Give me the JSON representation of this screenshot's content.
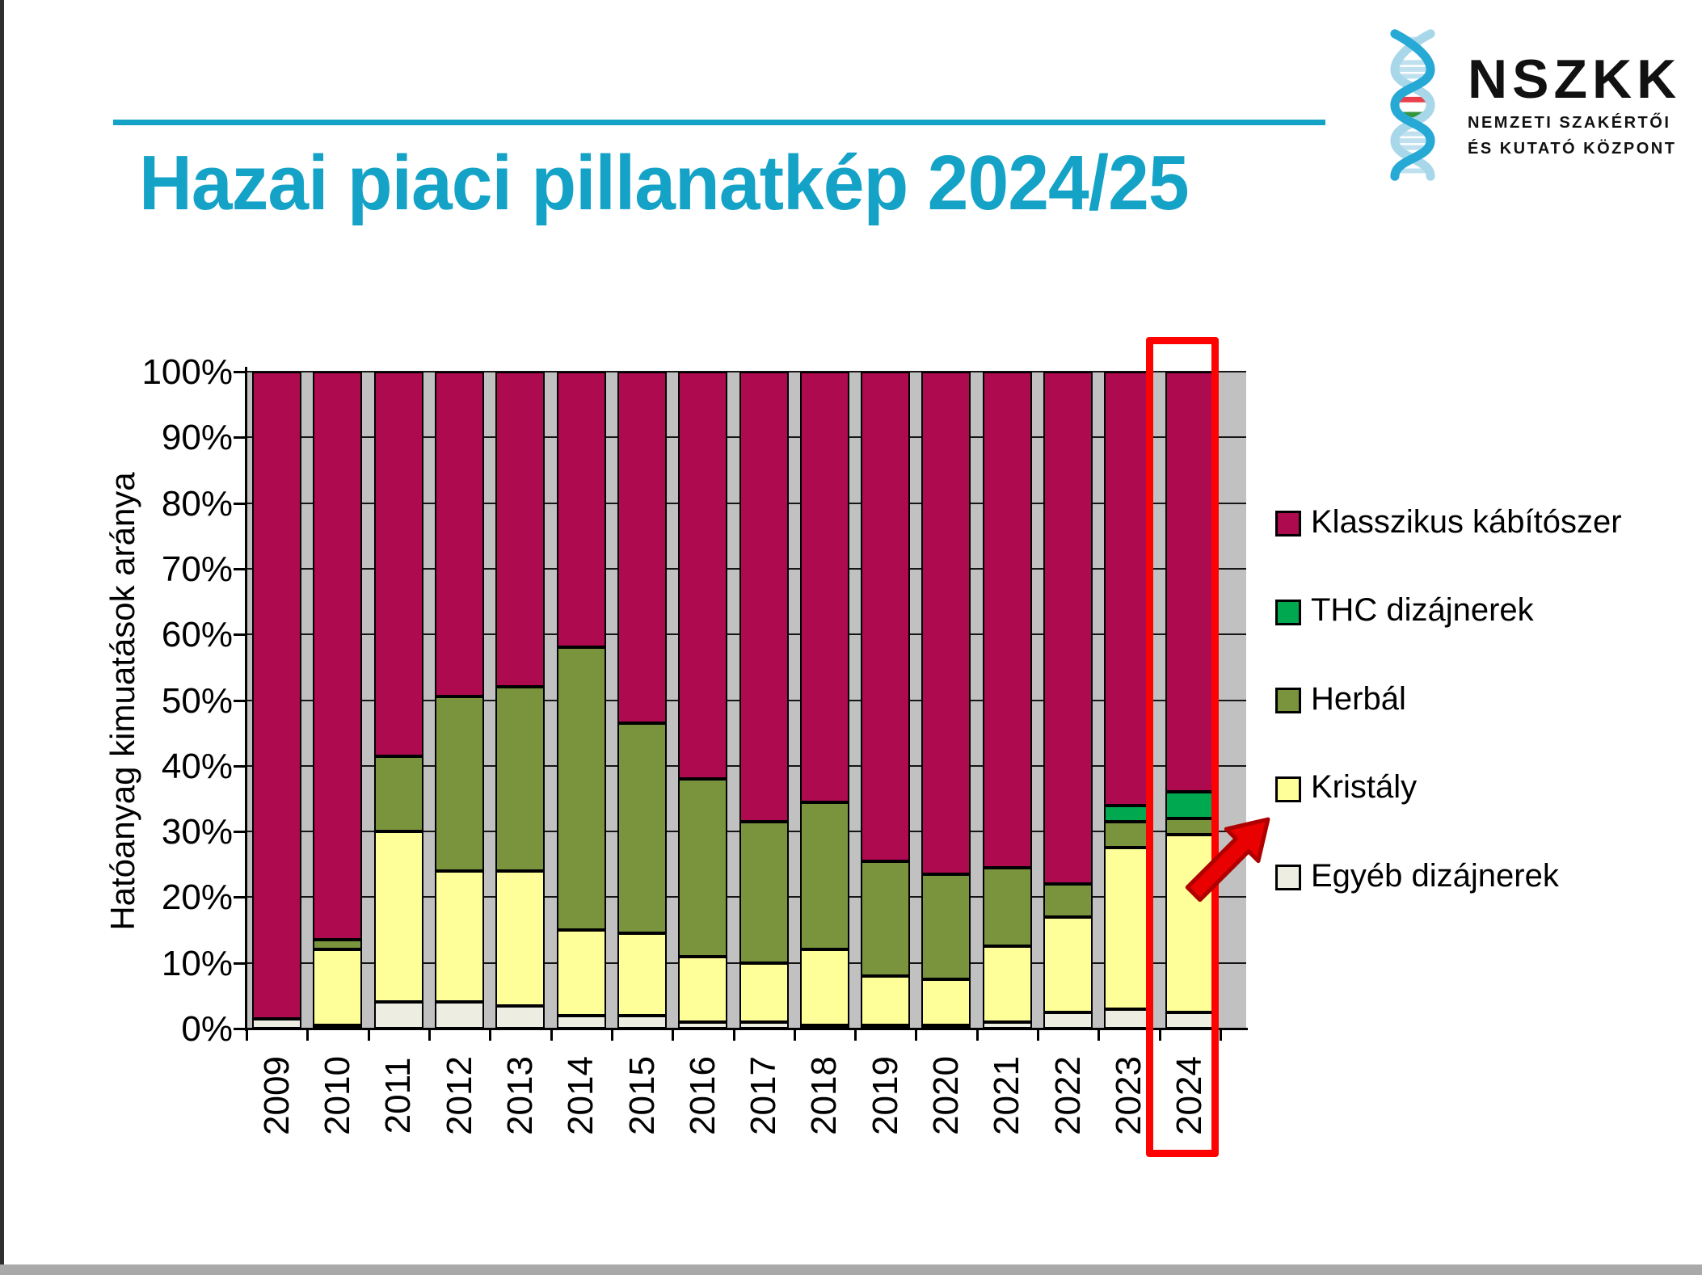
{
  "slide": {
    "title": "Hazai piaci pillanatkép 2024/25",
    "accent_color": "#14A3C7"
  },
  "logo": {
    "name": "NSZKK",
    "sub_lines": [
      "NEMZETI SZAKÉRTŐI",
      "ÉS KUTATÓ KÖZPONT"
    ],
    "colors": {
      "strand_front": "#27A9D6",
      "strand_back": "#A9D7EA",
      "rung_light": "#BFE0EF",
      "rung_red": "#E8414D",
      "rung_green": "#35953F"
    }
  },
  "chart_data": {
    "type": "bar",
    "stacked": true,
    "percent_stacked": true,
    "title": "",
    "xlabel": "",
    "ylabel": "Hatóanyag kimuatások aránya",
    "ylim": [
      0,
      100
    ],
    "y_ticks": [
      "100%",
      "90%",
      "80%",
      "70%",
      "60%",
      "50%",
      "40%",
      "30%",
      "20%",
      "10%",
      "0%"
    ],
    "grid": true,
    "plot_bg": "#C1C1C1",
    "gridline_color": "#161616",
    "categories": [
      "2009",
      "2010",
      "2011",
      "2012",
      "2013",
      "2014",
      "2015",
      "2016",
      "2017",
      "2018",
      "2019",
      "2020",
      "2021",
      "2022",
      "2023",
      "2024"
    ],
    "series": [
      {
        "name": "Egyéb dizájnerek",
        "color": "#EDEDE2",
        "values": [
          1.5,
          0.5,
          4,
          4,
          3.5,
          2,
          2,
          1,
          1,
          0.5,
          0.5,
          0.5,
          1,
          2.5,
          3,
          2.5
        ]
      },
      {
        "name": "Kristály",
        "color": "#FFFF99",
        "values": [
          0,
          11.5,
          26,
          20,
          20.5,
          13,
          12.5,
          10,
          9,
          11.5,
          7.5,
          7,
          11.5,
          14.5,
          24.5,
          27
        ]
      },
      {
        "name": "Herbál",
        "color": "#7A943D",
        "values": [
          0,
          1.5,
          11.5,
          26.5,
          28,
          43,
          32,
          27,
          21.5,
          22.5,
          17.5,
          16,
          12,
          5,
          4,
          2.5
        ]
      },
      {
        "name": "THC dizájnerek",
        "color": "#00A94F",
        "values": [
          0,
          0,
          0,
          0,
          0,
          0,
          0,
          0,
          0,
          0,
          0,
          0,
          0,
          0,
          2.5,
          4
        ]
      },
      {
        "name": "Klasszikus kábítószer",
        "color": "#AE0A4F",
        "values": [
          98.5,
          86.5,
          58.5,
          49.5,
          48,
          42,
          53.5,
          62,
          68.5,
          65.5,
          74.5,
          76.5,
          75.5,
          78,
          66,
          64
        ]
      }
    ],
    "legend": {
      "position": "right",
      "order": [
        "Klasszikus kábítószer",
        "THC dizájnerek",
        "Herbál",
        "Kristály",
        "Egyéb dizájnerek"
      ]
    },
    "highlight": {
      "category": "2024",
      "box_color": "#FE0101",
      "arrow_color": "#E90000",
      "arrow_stroke": "#AF0000"
    }
  }
}
